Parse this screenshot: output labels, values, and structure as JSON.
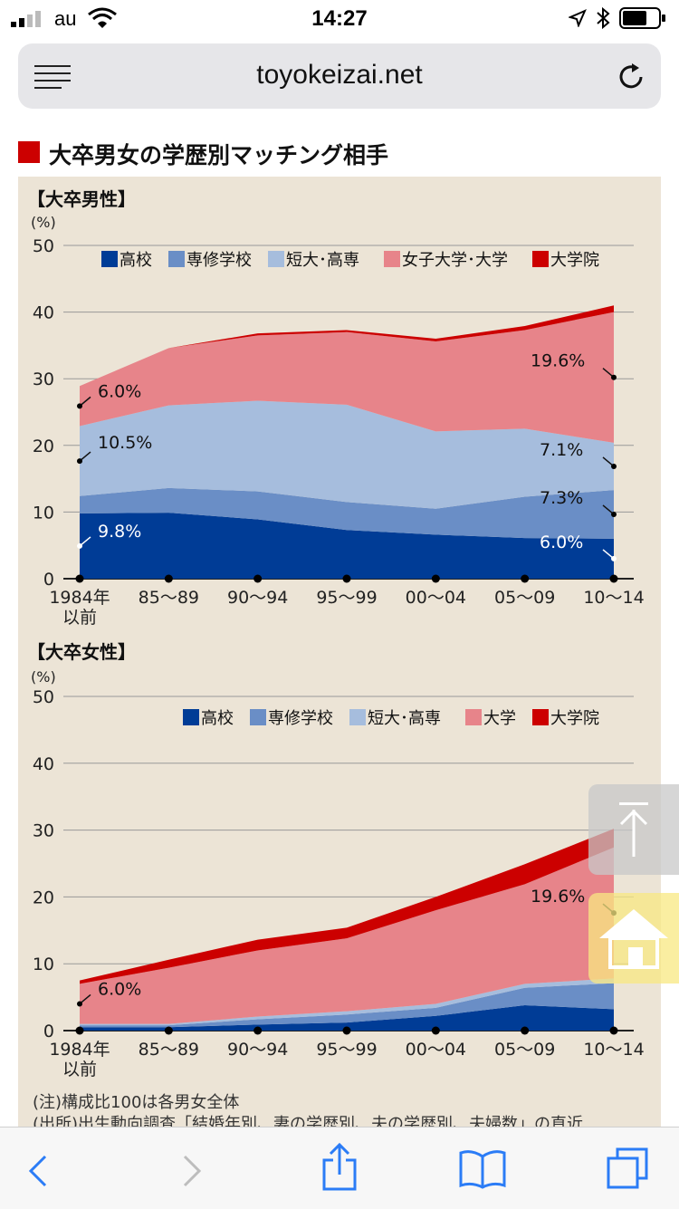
{
  "status": {
    "carrier": "au",
    "time": "14:27"
  },
  "browser": {
    "url": "toyokeizai.net"
  },
  "page": {
    "title": "大卒男女の学歴別マッチング相手",
    "note": "(注)構成比100は各男女全体",
    "source": "(出所)出生動向調査「結婚年別、妻の学歴別、夫の学歴別、夫婦数」の直近"
  },
  "icons": {
    "menu": "menu-lines-icon",
    "reload": "reload-icon",
    "back": "back-chevron-icon",
    "forward": "forward-chevron-icon",
    "share": "share-icon",
    "bookmarks": "bookmarks-book-icon",
    "tabs": "tabs-icon",
    "scroll_top": "scroll-top-icon",
    "home": "home-icon"
  },
  "colors": {
    "high_school": "#003c96",
    "vocational": "#6a8ec6",
    "junior_college": "#a6bddd",
    "university": "#e7848a",
    "graduate": "#cc0000",
    "panel": "#ece4d6",
    "accent": "#cc0000"
  },
  "chart_data": [
    {
      "type": "area",
      "stacked": true,
      "title": "【大卒男性】",
      "unit_label": "(%)",
      "ylim": [
        0,
        50
      ],
      "yticks": [
        0,
        10,
        20,
        30,
        40,
        50
      ],
      "grid": true,
      "legend_position": "top-right",
      "categories": [
        "1984年\n以前",
        "85〜89",
        "90〜94",
        "95〜99",
        "00〜04",
        "05〜09",
        "10〜14"
      ],
      "series": [
        {
          "name": "高校",
          "values": [
            9.8,
            9.9,
            8.9,
            7.3,
            6.6,
            6.1,
            6.0
          ]
        },
        {
          "name": "専修学校",
          "values": [
            2.6,
            3.7,
            4.2,
            4.2,
            3.9,
            6.2,
            7.3
          ]
        },
        {
          "name": "短大･高専",
          "values": [
            10.5,
            12.4,
            13.6,
            14.6,
            11.6,
            10.2,
            7.1
          ]
        },
        {
          "name": "女子大学･大学",
          "values": [
            6.0,
            8.6,
            9.8,
            10.9,
            13.5,
            14.8,
            19.6
          ]
        },
        {
          "name": "大学院",
          "values": [
            0.0,
            0.0,
            0.3,
            0.3,
            0.4,
            0.6,
            1.0
          ]
        }
      ],
      "annotations": [
        {
          "series": "女子大学･大学",
          "category": "1984年\n以前",
          "label": "6.0%"
        },
        {
          "series": "短大･高専",
          "category": "1984年\n以前",
          "label": "10.5%"
        },
        {
          "series": "高校",
          "category": "1984年\n以前",
          "label": "9.8%"
        },
        {
          "series": "女子大学･大学",
          "category": "10〜14",
          "label": "19.6%"
        },
        {
          "series": "短大･高専",
          "category": "10〜14",
          "label": "7.1%"
        },
        {
          "series": "専修学校",
          "category": "10〜14",
          "label": "7.3%"
        },
        {
          "series": "高校",
          "category": "10〜14",
          "label": "6.0%"
        }
      ]
    },
    {
      "type": "area",
      "stacked": true,
      "title": "【大卒女性】",
      "unit_label": "(%)",
      "ylim": [
        0,
        50
      ],
      "yticks": [
        0,
        10,
        20,
        30,
        40,
        50
      ],
      "grid": true,
      "legend_position": "top-right",
      "categories": [
        "1984年\n以前",
        "85〜89",
        "90〜94",
        "95〜99",
        "00〜04",
        "05〜09",
        "10〜14"
      ],
      "series": [
        {
          "name": "高校",
          "values": [
            0.5,
            0.5,
            0.9,
            1.2,
            2.2,
            3.8,
            3.2
          ]
        },
        {
          "name": "専修学校",
          "values": [
            0.3,
            0.3,
            0.8,
            1.2,
            1.2,
            2.6,
            3.9
          ]
        },
        {
          "name": "短大･高専",
          "values": [
            0.2,
            0.2,
            0.4,
            0.5,
            0.6,
            0.6,
            0.7
          ]
        },
        {
          "name": "大学",
          "values": [
            6.0,
            8.4,
            9.9,
            10.9,
            14.0,
            14.9,
            19.6
          ]
        },
        {
          "name": "大学院",
          "values": [
            0.5,
            1.2,
            1.6,
            1.6,
            2.0,
            3.0,
            2.8
          ]
        }
      ],
      "annotations": [
        {
          "series": "大学",
          "category": "1984年\n以前",
          "label": "6.0%"
        },
        {
          "series": "大学",
          "category": "10〜14",
          "label": "19.6%"
        }
      ]
    }
  ]
}
